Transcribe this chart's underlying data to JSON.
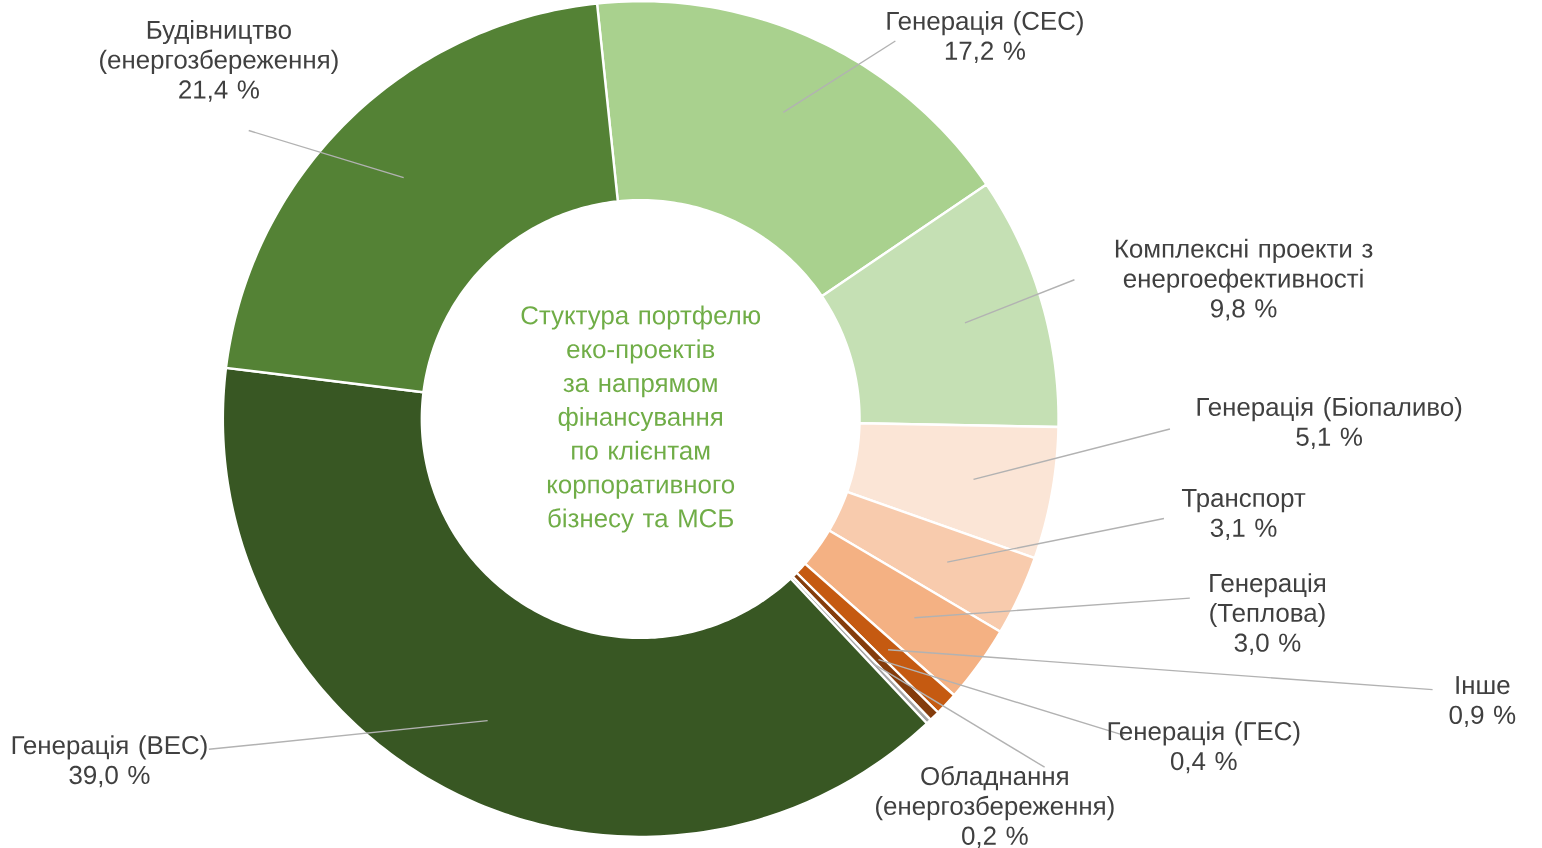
{
  "chart_data": {
    "type": "donut",
    "title": "Стуктура портфелю еко-проектів за напрямом фінансування по клієнтам корпоративного бізнесу та МСБ",
    "categories": [
      "Генерація (СЕС)",
      "Комплексні проекти з енергоефективності",
      "Генерація (Біопаливо)",
      "Транспорт",
      "Генерація (Теплова)",
      "Інше",
      "Генерація (ГЕС)",
      "Обладнання (енергозбереження)",
      "Генерація (ВЕС)",
      "Будівництво (енергозбереження)"
    ],
    "values": [
      17.2,
      9.8,
      5.1,
      3.1,
      3.0,
      0.9,
      0.4,
      0.2,
      39.0,
      21.4
    ],
    "value_labels": [
      "17,2 %",
      "9,8 %",
      "5,1 %",
      "3,1 %",
      "3,0 %",
      "0,9 %",
      "0,4 %",
      "0,2 %",
      "39,0 %",
      "21,4 %"
    ],
    "colors": [
      "#a9d18e",
      "#c5e0b4",
      "#fbe5d6",
      "#f8cbad",
      "#f4b183",
      "#c55a11",
      "#843c0c",
      "#a6a6a6",
      "#385723",
      "#548235"
    ]
  }
}
